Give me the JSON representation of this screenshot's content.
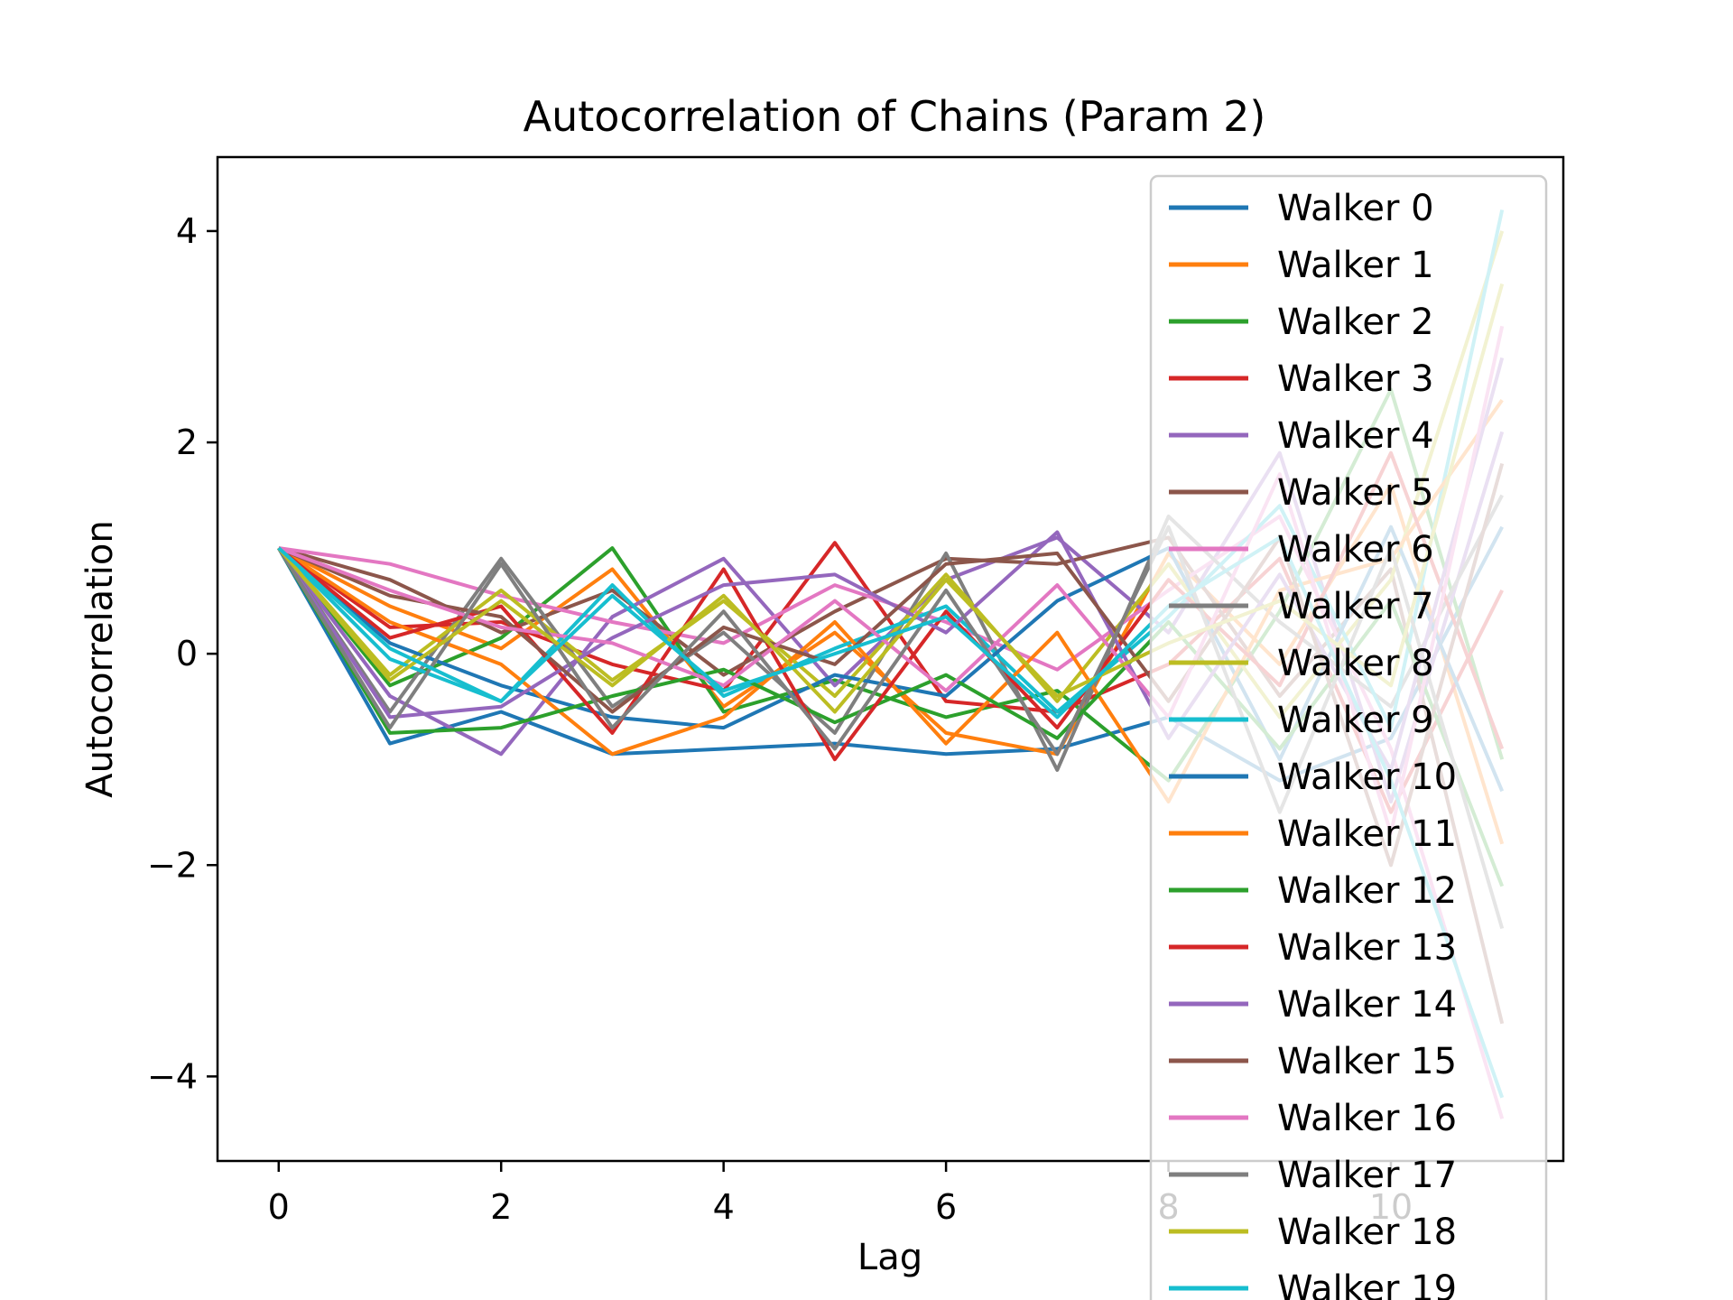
{
  "chart_data": {
    "type": "line",
    "title": "Autocorrelation of Chains (Param 2)",
    "xlabel": "Lag",
    "ylabel": "Autocorrelation",
    "xlim": [
      -0.55,
      11.55
    ],
    "ylim": [
      -4.8,
      4.7
    ],
    "xticks": [
      0,
      2,
      4,
      6,
      8,
      10
    ],
    "xtick_labels": [
      "0",
      "2",
      "4",
      "6",
      "8",
      "10"
    ],
    "yticks": [
      4,
      2,
      0,
      -2,
      -4
    ],
    "ytick_labels": [
      "4",
      "2",
      "0",
      "−2",
      "−4"
    ],
    "grid": false,
    "legend_position": "upper right",
    "palette": [
      "#1f77b4",
      "#ff7f0e",
      "#2ca02c",
      "#d62728",
      "#9467bd",
      "#8c564b",
      "#e377c2",
      "#7f7f7f",
      "#bcbd22",
      "#17becf"
    ],
    "x": [
      0,
      1,
      2,
      3,
      4,
      5,
      6,
      7,
      8,
      9,
      10,
      11
    ],
    "series": [
      {
        "name": "Walker 0",
        "values": [
          1,
          -0.85,
          -0.55,
          -0.95,
          -0.9,
          -0.85,
          -0.95,
          -0.9,
          -0.6,
          -1.2,
          -0.8,
          1.2
        ]
      },
      {
        "name": "Walker 1",
        "values": [
          1,
          0.45,
          0.05,
          0.8,
          -0.5,
          0.2,
          -0.75,
          -0.95,
          0.95,
          -0.1,
          1.6,
          -1.8
        ]
      },
      {
        "name": "Walker 2",
        "values": [
          1,
          -0.3,
          0.15,
          1.0,
          -0.55,
          -0.25,
          -0.6,
          -0.35,
          -1.2,
          0.4,
          2.5,
          -1.0
        ]
      },
      {
        "name": "Walker 3",
        "values": [
          1,
          0.25,
          0.3,
          -0.1,
          -0.35,
          1.05,
          -0.45,
          -0.55,
          -0.1,
          0.9,
          -1.5,
          0.6
        ]
      },
      {
        "name": "Walker 4",
        "values": [
          1,
          -0.4,
          -0.95,
          0.35,
          0.9,
          -0.3,
          0.7,
          1.1,
          0.2,
          1.9,
          -1.4,
          2.1
        ]
      },
      {
        "name": "Walker 5",
        "values": [
          1,
          0.7,
          0.2,
          0.6,
          -0.2,
          0.4,
          0.9,
          0.85,
          1.1,
          -0.4,
          0.8,
          -3.5
        ]
      },
      {
        "name": "Walker 6",
        "values": [
          1,
          0.85,
          0.55,
          0.3,
          0.1,
          0.65,
          0.3,
          -0.15,
          0.6,
          1.3,
          -0.9,
          -4.4
        ]
      },
      {
        "name": "Walker 7",
        "values": [
          1,
          -0.55,
          0.9,
          -0.5,
          0.2,
          -0.75,
          0.95,
          -1.1,
          1.3,
          0.3,
          -0.5,
          1.5
        ]
      },
      {
        "name": "Walker 8",
        "values": [
          1,
          -0.2,
          0.6,
          -0.25,
          0.5,
          -0.4,
          0.75,
          -0.45,
          0.85,
          -0.6,
          0.7,
          4.0
        ]
      },
      {
        "name": "Walker 9",
        "values": [
          1,
          -0.05,
          -0.45,
          0.65,
          -0.4,
          0.05,
          0.45,
          -0.55,
          0.35,
          1.4,
          -0.7,
          4.2
        ]
      },
      {
        "name": "Walker 10",
        "values": [
          1,
          0.1,
          -0.3,
          -0.6,
          -0.7,
          -0.2,
          -0.4,
          0.5,
          1.0,
          -1.0,
          1.2,
          -1.3
        ]
      },
      {
        "name": "Walker 11",
        "values": [
          1,
          0.3,
          -0.1,
          -0.95,
          -0.6,
          0.3,
          -0.85,
          0.2,
          -1.4,
          0.6,
          0.9,
          2.4
        ]
      },
      {
        "name": "Walker 12",
        "values": [
          1,
          -0.75,
          -0.7,
          -0.4,
          -0.15,
          -0.65,
          -0.2,
          -0.8,
          0.3,
          -0.9,
          0.5,
          -2.2
        ]
      },
      {
        "name": "Walker 13",
        "values": [
          1,
          0.15,
          0.45,
          -0.75,
          0.8,
          -1.0,
          0.4,
          -0.7,
          0.7,
          -0.3,
          1.9,
          -0.9
        ]
      },
      {
        "name": "Walker 14",
        "values": [
          1,
          -0.6,
          -0.5,
          0.15,
          0.65,
          0.75,
          0.2,
          1.15,
          -0.8,
          0.75,
          -1.1,
          2.8
        ]
      },
      {
        "name": "Walker 15",
        "values": [
          1,
          0.55,
          0.35,
          -0.55,
          0.25,
          -0.1,
          0.85,
          0.95,
          -0.45,
          1.1,
          -2.0,
          1.8
        ]
      },
      {
        "name": "Walker 16",
        "values": [
          1,
          0.6,
          0.25,
          0.1,
          -0.3,
          0.5,
          -0.35,
          0.65,
          -0.6,
          1.7,
          -1.7,
          3.1
        ]
      },
      {
        "name": "Walker 17",
        "values": [
          1,
          -0.7,
          0.85,
          -0.7,
          0.4,
          -0.9,
          0.6,
          -0.95,
          1.2,
          -1.5,
          1.0,
          -2.6
        ]
      },
      {
        "name": "Walker 18",
        "values": [
          1,
          -0.25,
          0.5,
          -0.3,
          0.55,
          -0.55,
          0.7,
          -0.4,
          0.1,
          0.5,
          -0.3,
          3.5
        ]
      },
      {
        "name": "Walker 19",
        "values": [
          1,
          0.05,
          -0.45,
          0.55,
          -0.35,
          0.0,
          0.35,
          -0.6,
          0.45,
          1.1,
          -1.2,
          -4.2
        ]
      }
    ]
  }
}
